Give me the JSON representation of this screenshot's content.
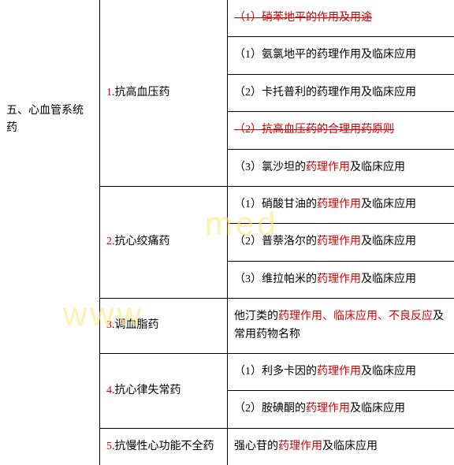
{
  "section": {
    "title": "五、心血管系统药"
  },
  "rows": [
    {
      "subcategory_num": "1",
      "subcategory_label": "抗高血压药",
      "items": [
        {
          "pre": "",
          "main": "（1）硝苯地平的作用及用途",
          "red": false,
          "strike": true,
          "allred": true
        },
        {
          "pre": "（1）氨氯地平的",
          "main": "药理作用",
          "post": "及临床应用",
          "red": false
        },
        {
          "pre": "（2）卡托普利的",
          "main": "药理作用",
          "post": "及临床应用",
          "red": false
        },
        {
          "pre": "",
          "main": "（2）抗高血压药的合理用药原则",
          "red": false,
          "strike": true,
          "allred": true
        },
        {
          "pre": "（3）氯沙坦的",
          "main": "药理作用",
          "post": "及临床应用",
          "red": true
        }
      ]
    },
    {
      "subcategory_num": "2",
      "subcategory_label": "抗心绞痛药",
      "items": [
        {
          "pre": "（1）硝酸甘油的",
          "main": "药理作用",
          "post": "及临床应用",
          "red": true
        },
        {
          "pre": "（2）普萘洛尔的",
          "main": "药理作用",
          "post": "及临床应用",
          "red": true
        },
        {
          "pre": "（3）维拉帕米的",
          "main": "药理作用",
          "post": "及临床应用",
          "red": true
        }
      ]
    },
    {
      "subcategory_num": "3",
      "subcategory_label": "调血脂药",
      "items": [
        {
          "pre": "他汀类的",
          "main": "药理作用、临床应用、不良反应",
          "post": "及常用药物名称",
          "red": true
        }
      ]
    },
    {
      "subcategory_num": "4",
      "subcategory_label": "抗心律失常药",
      "items": [
        {
          "pre": "（1）利多卡因的",
          "main": "药理作用",
          "post": "及临床应用",
          "red": true
        },
        {
          "pre": "（2）胺碘酮的",
          "main": "药理作用",
          "post": "及临床应用",
          "red": true
        }
      ]
    },
    {
      "subcategory_num": "5",
      "subcategory_label": "抗慢性心功能不全药",
      "items": [
        {
          "pre": "强心苷的",
          "main": "药理作用",
          "post": "及临床应用",
          "red": true
        }
      ]
    }
  ],
  "colors": {
    "red": "#d10000",
    "black": "#000000",
    "border": "#000000",
    "bg": "#ffffff"
  },
  "watermark": {
    "text1": "med",
    "text2": "www"
  }
}
